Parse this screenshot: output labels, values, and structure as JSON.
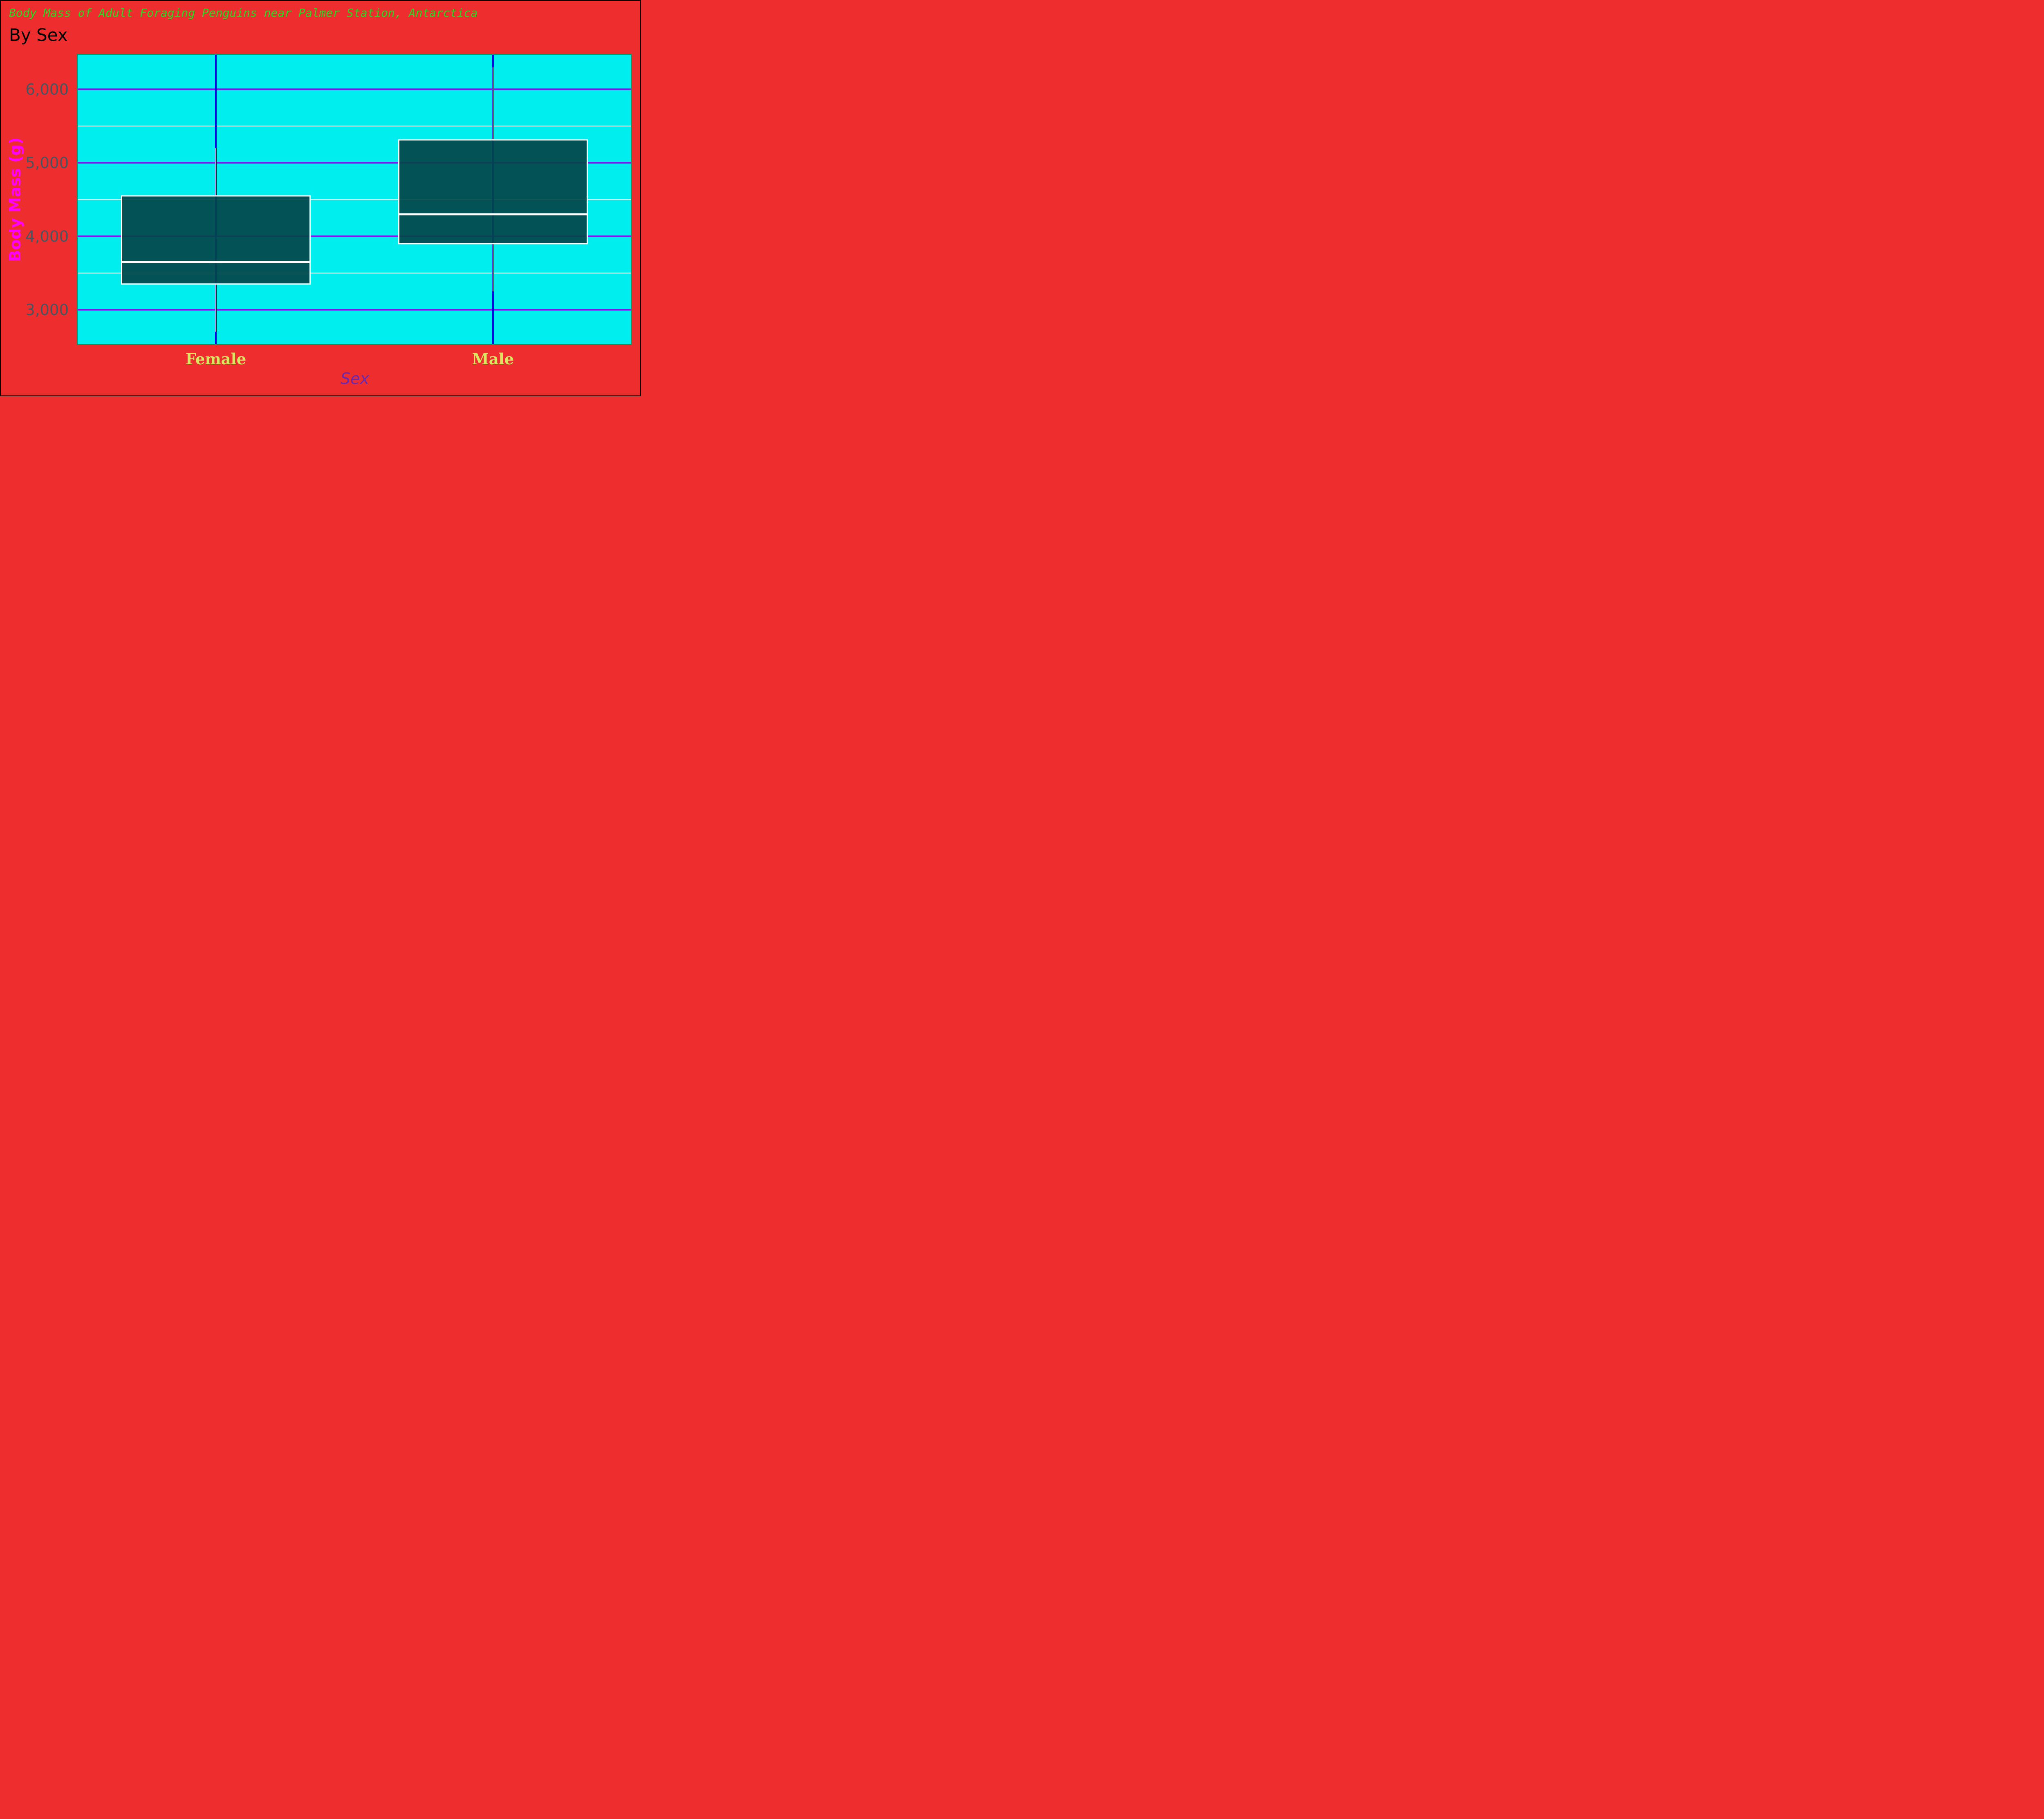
{
  "colors": {
    "page_background": "#ee2e2e",
    "page_border": "#000000",
    "panel_background": "#00eeee",
    "panel_border": "#2e8b57",
    "major_grid": "#8a10f0",
    "minor_grid": "#ffffff",
    "x_grid": "#0a00ee",
    "box_fill": "#03464a",
    "box_stroke": "#ffffff",
    "whisker": "#ffffff",
    "title": "#22dd22",
    "subtitle": "#000000",
    "y_tick_label": "#4a5560",
    "x_tick_label": "#d9e860",
    "y_axis_title": "#ff00ff",
    "x_axis_title": "#6a2ab0"
  },
  "chart_data": {
    "type": "box",
    "title": "Body Mass of Adult Foraging Penguins near Palmer Station, Antarctica",
    "subtitle": "By Sex",
    "xlabel": "Sex",
    "ylabel": "Body Mass (g)",
    "categories": [
      "Female",
      "Male"
    ],
    "ylim": [
      2525,
      6475
    ],
    "y_ticks": [
      3000,
      4000,
      5000,
      6000
    ],
    "y_tick_labels": [
      "3,000",
      "4,000",
      "5,000",
      "6,000"
    ],
    "y_minor_ticks": [
      3500,
      4500,
      5500
    ],
    "boxes": [
      {
        "category": "Female",
        "whisker_low": 2700,
        "q1": 3350,
        "median": 3650,
        "q3": 4550,
        "whisker_high": 5200
      },
      {
        "category": "Male",
        "whisker_low": 3250,
        "q1": 3900,
        "median": 4300,
        "q3": 5312,
        "whisker_high": 6300
      }
    ],
    "grid": true,
    "legend": "none"
  }
}
